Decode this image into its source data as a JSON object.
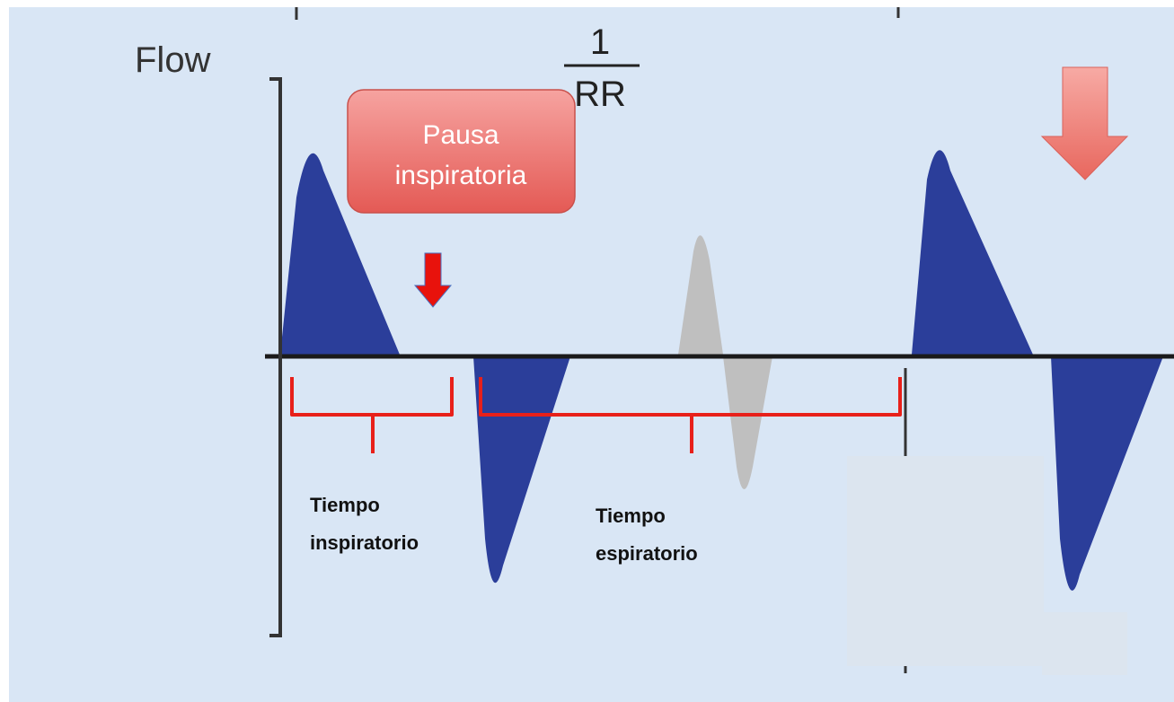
{
  "axis_label": "Flow",
  "fraction": {
    "numerator": "1",
    "denominator": "RR"
  },
  "callout": {
    "lines": [
      "Pausa",
      "inspiratoria"
    ]
  },
  "labels": [
    {
      "lines": [
        "Tiempo",
        "inspiratorio"
      ]
    },
    {
      "lines": [
        "Tiempo",
        "espiratorio"
      ]
    }
  ]
}
